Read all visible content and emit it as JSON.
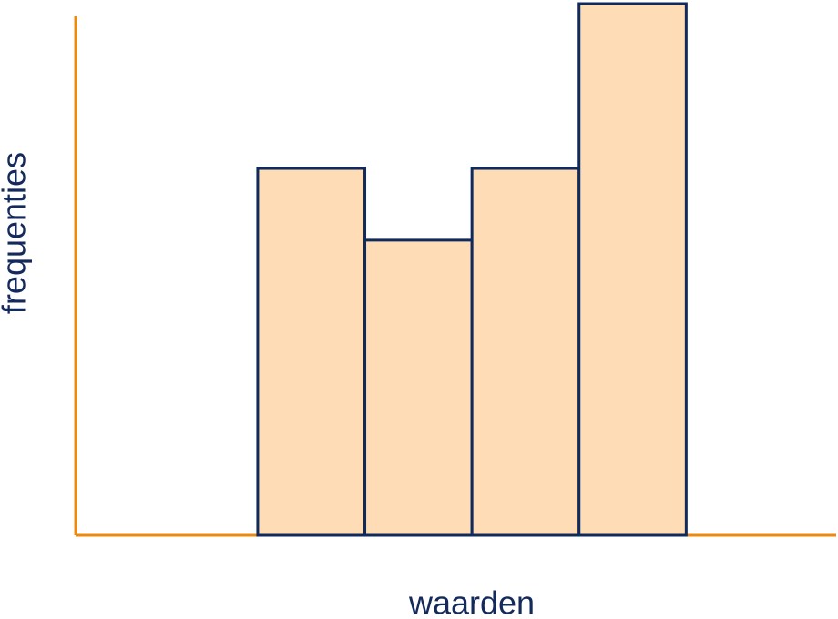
{
  "chart_data": {
    "type": "histogram",
    "x_label": "waarden",
    "y_label": "frequenties",
    "bins": [
      1.7,
      2.7,
      3.7,
      4.7,
      5.7
    ],
    "values": [
      6.9,
      5.55,
      6.9,
      10
    ],
    "color": "#fddcb6",
    "edge_color": "#102a5c",
    "axis_color": "#ec8a0c",
    "xlim": [
      0,
      7.1
    ],
    "ylim": [
      0,
      10
    ],
    "grid": false
  }
}
